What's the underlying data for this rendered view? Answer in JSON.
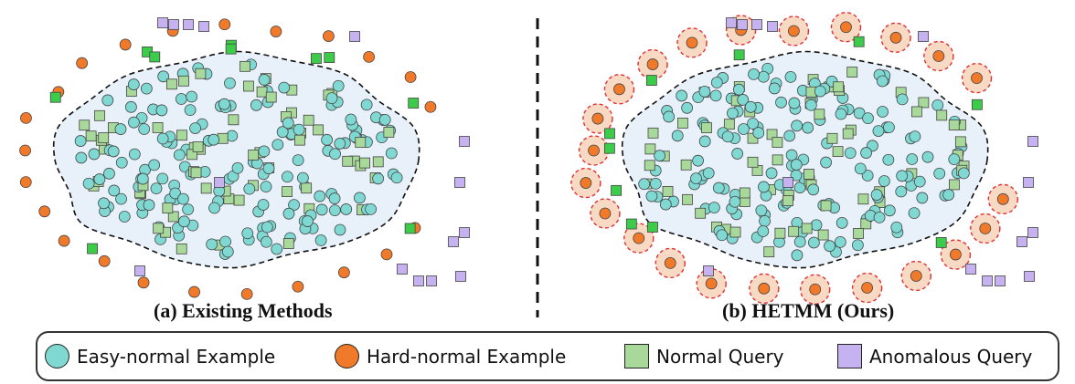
{
  "panels": {
    "left_caption": "(a) Existing Methods",
    "right_caption": "(b) HETMM (Ours)"
  },
  "legend": [
    {
      "label": "Easy-normal Example",
      "shape": "circle",
      "color": "#7fd8d2"
    },
    {
      "label": "Hard-normal Example",
      "shape": "circle",
      "color": "#f07a2a"
    },
    {
      "label": "Normal Query",
      "shape": "square",
      "color": "#a8d99a"
    },
    {
      "label": "Anomalous Query",
      "shape": "square",
      "color": "#c6b2f0"
    }
  ],
  "colors": {
    "easy_normal": "#7fd8d2",
    "hard_normal": "#f07a2a",
    "normal_query": "#a8d99a",
    "normal_query_bright": "#3dcc4a",
    "anomalous_query": "#c6b2f0",
    "region_fill": "#e8f0fa",
    "highlight_fill": "#f7d9c4",
    "highlight_ring": "#e03030"
  }
}
